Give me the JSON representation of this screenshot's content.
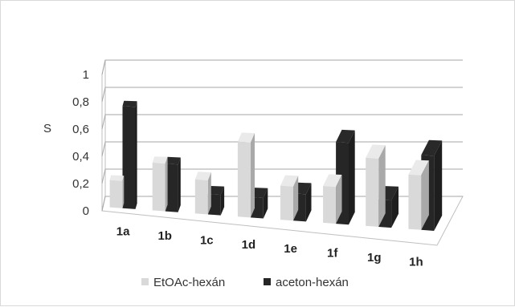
{
  "chart_data": {
    "type": "bar",
    "subtype": "3d-clustered",
    "categories": [
      "1a",
      "1b",
      "1c",
      "1d",
      "1e",
      "1f",
      "1g",
      "1h"
    ],
    "series": [
      {
        "name": "EtOAc-hexán",
        "values": [
          0.2,
          0.35,
          0.25,
          0.55,
          0.25,
          0.27,
          0.5,
          0.4
        ],
        "color": "#d9d9d9"
      },
      {
        "name": "aceton-hexán",
        "values": [
          0.75,
          0.35,
          0.15,
          0.15,
          0.2,
          0.6,
          0.2,
          0.55
        ],
        "color": "#262626"
      }
    ],
    "ylabel": "S",
    "ylim": [
      0,
      1
    ],
    "yticks": [
      "0",
      "0,2",
      "0,4",
      "0,6",
      "0,8",
      "1"
    ],
    "grid": true,
    "legend_position": "bottom"
  }
}
